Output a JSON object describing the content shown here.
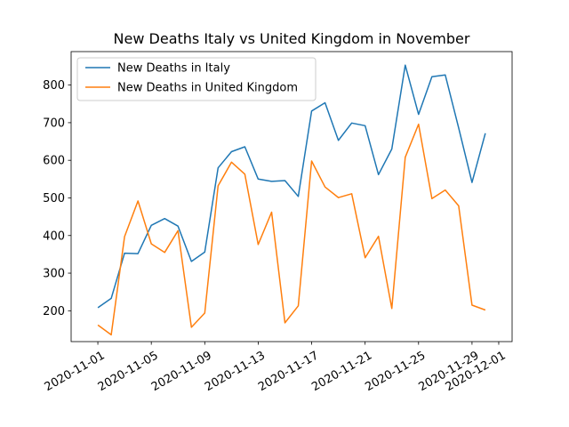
{
  "chart_data": {
    "type": "line",
    "title": "New Deaths Italy vs United Kingdom in November",
    "xlabel": "",
    "ylabel": "",
    "x": [
      "2020-11-01",
      "2020-11-02",
      "2020-11-03",
      "2020-11-04",
      "2020-11-05",
      "2020-11-06",
      "2020-11-07",
      "2020-11-08",
      "2020-11-09",
      "2020-11-10",
      "2020-11-11",
      "2020-11-12",
      "2020-11-13",
      "2020-11-14",
      "2020-11-15",
      "2020-11-16",
      "2020-11-17",
      "2020-11-18",
      "2020-11-19",
      "2020-11-20",
      "2020-11-21",
      "2020-11-22",
      "2020-11-23",
      "2020-11-24",
      "2020-11-25",
      "2020-11-26",
      "2020-11-27",
      "2020-11-28",
      "2020-11-29",
      "2020-11-30"
    ],
    "series": [
      {
        "name": "New Deaths in Italy",
        "color": "#1f77b4",
        "values": [
          208,
          233,
          353,
          352,
          427,
          445,
          425,
          331,
          356,
          580,
          623,
          636,
          550,
          544,
          546,
          504,
          731,
          753,
          653,
          699,
          692,
          562,
          630,
          853,
          722,
          822,
          827,
          686,
          541,
          672
        ]
      },
      {
        "name": "New Deaths in United Kingdom",
        "color": "#ff7f0e",
        "values": [
          162,
          136,
          397,
          492,
          378,
          355,
          413,
          156,
          194,
          532,
          595,
          563,
          376,
          462,
          168,
          213,
          598,
          529,
          501,
          511,
          341,
          398,
          206,
          608,
          696,
          498,
          521,
          479,
          215,
          202
        ]
      }
    ],
    "xticks": [
      "2020-11-01",
      "2020-11-05",
      "2020-11-09",
      "2020-11-13",
      "2020-11-17",
      "2020-11-21",
      "2020-11-25",
      "2020-11-29",
      "2020-12-01"
    ],
    "yticks": [
      200,
      300,
      400,
      500,
      600,
      700,
      800
    ],
    "xlim": [
      "2020-10-30",
      "2020-12-02"
    ],
    "ylim": [
      118,
      889
    ],
    "legend": "top-left",
    "grid": false
  }
}
